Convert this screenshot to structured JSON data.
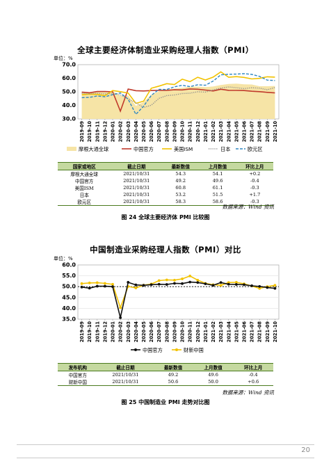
{
  "chart1": {
    "title": "全球主要经济体制造业采购经理人指数（PMI）",
    "unit": "单位：%",
    "chart_data": {
      "type": "line",
      "categories": [
        "2019-09",
        "2019-10",
        "2019-11",
        "2019-12",
        "2020-01",
        "2020-02",
        "2020-03",
        "2020-04",
        "2020-05",
        "2020-06",
        "2020-07",
        "2020-08",
        "2020-09",
        "2020-10",
        "2020-11",
        "2020-12",
        "2021-01",
        "2021-02",
        "2021-03",
        "2021-04",
        "2021-05",
        "2021-06",
        "2021-07",
        "2021-08",
        "2021-09",
        "2021-10"
      ],
      "ylim": [
        30,
        70
      ],
      "yticks": [
        "30.0",
        "40.0",
        "50.0",
        "60.0",
        "70.0"
      ],
      "series": [
        {
          "name": "摩根大通全球",
          "color": "#f6e4a6",
          "style": "area",
          "values": [
            49.7,
            49.8,
            50.3,
            50.1,
            50.4,
            47.1,
            47.3,
            39.6,
            42.4,
            47.8,
            50.3,
            51.8,
            52.3,
            53.0,
            53.7,
            53.8,
            53.5,
            53.9,
            55.0,
            55.8,
            56.0,
            55.5,
            55.4,
            54.1,
            54.1,
            54.3
          ]
        },
        {
          "name": "中国官方",
          "color": "#c0392b",
          "style": "solid",
          "values": [
            49.8,
            49.3,
            50.2,
            50.2,
            50.0,
            35.7,
            52.0,
            50.8,
            50.6,
            50.9,
            51.1,
            51.0,
            51.5,
            51.4,
            52.1,
            51.9,
            51.3,
            50.6,
            51.9,
            51.1,
            51.0,
            50.9,
            50.4,
            50.1,
            49.6,
            49.2
          ]
        },
        {
          "name": "美国ISM",
          "color": "#f2c200",
          "style": "solid",
          "values": [
            47.8,
            48.3,
            48.1,
            47.2,
            50.9,
            50.1,
            49.1,
            41.5,
            43.1,
            52.6,
            54.2,
            56.0,
            55.4,
            59.3,
            57.5,
            60.7,
            58.7,
            60.8,
            64.7,
            60.7,
            61.2,
            60.6,
            59.5,
            59.9,
            61.1,
            60.8
          ]
        },
        {
          "name": "日本",
          "color": "#8c8c8c",
          "style": "dotted",
          "values": [
            48.9,
            48.4,
            48.9,
            48.4,
            48.8,
            47.8,
            44.8,
            41.9,
            38.4,
            40.1,
            45.2,
            47.2,
            47.7,
            48.7,
            49.0,
            50.0,
            49.8,
            51.4,
            52.7,
            53.6,
            53.0,
            52.4,
            53.0,
            52.7,
            51.5,
            53.2
          ]
        },
        {
          "name": "欧元区",
          "color": "#2e86c1",
          "style": "dashed",
          "values": [
            45.7,
            45.9,
            46.9,
            46.3,
            47.9,
            49.2,
            44.5,
            33.4,
            39.4,
            47.4,
            51.8,
            51.7,
            53.7,
            54.8,
            53.8,
            55.2,
            54.8,
            57.9,
            62.5,
            62.9,
            63.1,
            63.4,
            62.8,
            61.4,
            58.6,
            58.3
          ]
        }
      ]
    },
    "table": {
      "headers": [
        "国家或地区",
        "截止日期",
        "最新数值",
        "上月数值",
        "环比上月"
      ],
      "rows": [
        [
          "摩根大通全球",
          "2021/10/31",
          "54.3",
          "54.1",
          "+0.2"
        ],
        [
          "中国官方",
          "2021/10/31",
          "49.2",
          "49.6",
          "-0.4"
        ],
        [
          "美国ISM",
          "2021/10/31",
          "60.8",
          "61.1",
          "-0.3"
        ],
        [
          "日本",
          "2021/10/31",
          "53.2",
          "51.5",
          "+1.7"
        ],
        [
          "欧元区",
          "2021/10/31",
          "58.3",
          "58.6",
          "-0.3"
        ]
      ]
    },
    "source": "数据来源：Wind 资讯",
    "caption": "图 24   全球主要经济体 PMI 比较图"
  },
  "chart2": {
    "title": "中国制造业采购经理人指数（PMI）对比",
    "unit": "单位：%",
    "chart_data": {
      "type": "line",
      "categories": [
        "2019-09",
        "2019-10",
        "2019-11",
        "2019-12",
        "2020-01",
        "2020-02",
        "2020-03",
        "2020-04",
        "2020-05",
        "2020-06",
        "2020-07",
        "2020-08",
        "2020-09",
        "2020-10",
        "2020-11",
        "2020-12",
        "2021-01",
        "2021-02",
        "2021-03",
        "2021-04",
        "2021-05",
        "2021-06",
        "2021-07",
        "2021-08",
        "2021-09",
        "2021-10"
      ],
      "ylim": [
        35,
        60
      ],
      "yticks": [
        "35.0",
        "40.0",
        "45.0",
        "50.0",
        "55.0",
        "60.0"
      ],
      "reference_line": 50,
      "series": [
        {
          "name": "中国官方",
          "color": "#111111",
          "values": [
            49.8,
            49.3,
            50.2,
            50.2,
            50.0,
            35.7,
            52.0,
            50.8,
            50.6,
            50.9,
            51.1,
            51.0,
            51.5,
            51.4,
            52.1,
            51.9,
            51.3,
            50.6,
            51.9,
            51.1,
            51.0,
            50.9,
            50.4,
            50.1,
            49.6,
            49.2
          ]
        },
        {
          "name": "财新中国",
          "color": "#f2c200",
          "values": [
            51.4,
            51.7,
            51.8,
            51.5,
            51.1,
            40.3,
            50.1,
            49.4,
            50.7,
            51.2,
            52.8,
            53.1,
            53.0,
            53.6,
            54.9,
            53.0,
            51.5,
            50.9,
            50.6,
            51.9,
            52.0,
            51.3,
            50.3,
            49.2,
            50.0,
            50.6
          ]
        }
      ]
    },
    "table": {
      "headers": [
        "发布机构",
        "截止日期",
        "最新数值",
        "上月数值",
        "环比上月"
      ],
      "rows": [
        [
          "中国官方",
          "2021/10/31",
          "49.2",
          "49.6",
          "-0.4"
        ],
        [
          "财新中国",
          "2021/10/31",
          "50.6",
          "50.0",
          "+0.6"
        ]
      ]
    },
    "source": "数据来源：Wind 资讯",
    "caption": "图 25   中国制造业 PMI 走势对比图"
  },
  "page_number": "20"
}
